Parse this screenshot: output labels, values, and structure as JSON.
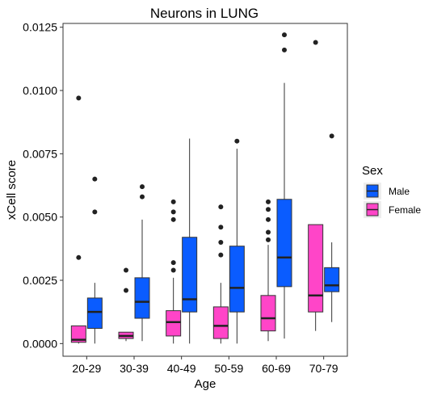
{
  "chart_data": {
    "type": "boxplot",
    "title": "Neurons in LUNG",
    "xlabel": "Age",
    "ylabel": "xCell score",
    "ylim": [
      -0.0005,
      0.01265
    ],
    "yticks": [
      0.0,
      0.0025,
      0.005,
      0.0075,
      0.01,
      0.0125
    ],
    "ytick_labels": [
      "0.0000",
      "0.0025",
      "0.0050",
      "0.0075",
      "0.0100",
      "0.0125"
    ],
    "grid": false,
    "legend_position": "right",
    "legend": {
      "title": "Sex",
      "entries": [
        {
          "name": "Male",
          "color": "#0a5cff"
        },
        {
          "name": "Female",
          "color": "#ff45c8"
        }
      ]
    },
    "categories": [
      "20-29",
      "30-39",
      "40-49",
      "50-59",
      "60-69",
      "70-79"
    ],
    "series": [
      {
        "name": "Female",
        "color": "#ff45c8",
        "boxes": [
          {
            "min": 0.0,
            "q1": 5e-05,
            "median": 0.00015,
            "q3": 0.0007,
            "max": 0.0007,
            "outliers": [
              0.0034,
              0.0097
            ]
          },
          {
            "min": 0.0001,
            "q1": 0.0002,
            "median": 0.0003,
            "q3": 0.00045,
            "max": 0.00045,
            "outliers": [
              0.0021,
              0.0029
            ]
          },
          {
            "min": 0.0,
            "q1": 0.0003,
            "median": 0.00085,
            "q3": 0.0013,
            "max": 0.0026,
            "outliers": [
              0.0029,
              0.0032,
              0.0049,
              0.0052,
              0.0056
            ]
          },
          {
            "min": 0.0,
            "q1": 0.0002,
            "median": 0.0007,
            "q3": 0.00145,
            "max": 0.0024,
            "outliers": [
              0.0035,
              0.004,
              0.0046,
              0.0054
            ]
          },
          {
            "min": 0.0001,
            "q1": 0.0005,
            "median": 0.001,
            "q3": 0.0019,
            "max": 0.0039,
            "outliers": [
              0.0041,
              0.0044,
              0.0049,
              0.0053,
              0.0056
            ]
          },
          {
            "min": 0.0005,
            "q1": 0.00125,
            "median": 0.0019,
            "q3": 0.0047,
            "max": 0.0047,
            "outliers": [
              0.0119
            ]
          }
        ]
      },
      {
        "name": "Male",
        "color": "#0a5cff",
        "boxes": [
          {
            "min": 0.0,
            "q1": 0.0006,
            "median": 0.00125,
            "q3": 0.0018,
            "max": 0.0024,
            "outliers": [
              0.0052,
              0.0065
            ]
          },
          {
            "min": 0.0001,
            "q1": 0.001,
            "median": 0.00165,
            "q3": 0.0026,
            "max": 0.0049,
            "outliers": [
              0.0058,
              0.0062
            ]
          },
          {
            "min": 0.0,
            "q1": 0.00125,
            "median": 0.00175,
            "q3": 0.0042,
            "max": 0.0081,
            "outliers": []
          },
          {
            "min": 0.0,
            "q1": 0.00125,
            "median": 0.0022,
            "q3": 0.00385,
            "max": 0.0077,
            "outliers": [
              0.008
            ]
          },
          {
            "min": 0.0002,
            "q1": 0.00225,
            "median": 0.0034,
            "q3": 0.0057,
            "max": 0.0103,
            "outliers": [
              0.0116,
              0.0122
            ]
          },
          {
            "min": 0.00085,
            "q1": 0.00205,
            "median": 0.0023,
            "q3": 0.003,
            "max": 0.004,
            "outliers": [
              0.0082
            ]
          }
        ]
      }
    ]
  }
}
